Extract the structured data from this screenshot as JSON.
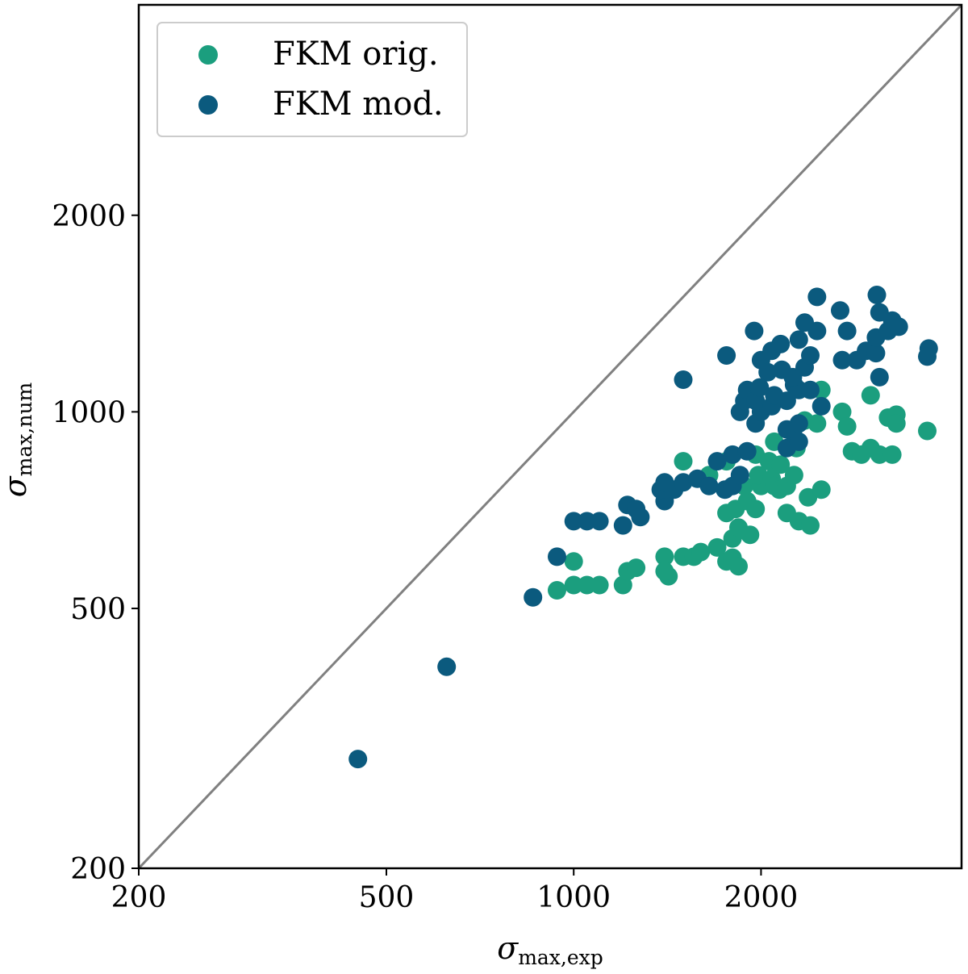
{
  "chart_data": {
    "type": "scatter",
    "title": "",
    "xlabel": {
      "symbol": "σ",
      "subscript": "max,exp"
    },
    "ylabel": {
      "symbol": "σ",
      "subscript": "max,num"
    },
    "xscale": "log",
    "yscale": "log",
    "xlim": [
      200,
      4200
    ],
    "ylim": [
      200,
      4200
    ],
    "xticks": [
      200,
      500,
      1000,
      2000
    ],
    "yticks": [
      200,
      500,
      1000,
      2000
    ],
    "xtick_labels": [
      "200",
      "500",
      "1000",
      "2000"
    ],
    "ytick_labels": [
      "200",
      "500",
      "1000",
      "2000"
    ],
    "grid": false,
    "legend_position": "top-left",
    "reference_line": {
      "description": "y = x",
      "color": "#808080"
    },
    "series": [
      {
        "name": "FKM orig.",
        "color": "#1b9e7e",
        "points": [
          [
            940,
            533
          ],
          [
            1000,
            590
          ],
          [
            1000,
            543
          ],
          [
            1050,
            543
          ],
          [
            1100,
            543
          ],
          [
            1200,
            543
          ],
          [
            1220,
            570
          ],
          [
            1260,
            577
          ],
          [
            1400,
            600
          ],
          [
            1420,
            560
          ],
          [
            1400,
            570
          ],
          [
            1500,
            600
          ],
          [
            1560,
            600
          ],
          [
            1600,
            610
          ],
          [
            1700,
            620
          ],
          [
            1760,
            590
          ],
          [
            1800,
            598
          ],
          [
            1840,
            580
          ],
          [
            1800,
            640
          ],
          [
            1840,
            665
          ],
          [
            1920,
            648
          ],
          [
            1760,
            700
          ],
          [
            1820,
            710
          ],
          [
            1900,
            730
          ],
          [
            1960,
            710
          ],
          [
            1880,
            770
          ],
          [
            2000,
            770
          ],
          [
            1980,
            800
          ],
          [
            2080,
            790
          ],
          [
            2100,
            770
          ],
          [
            2140,
            760
          ],
          [
            2200,
            770
          ],
          [
            2260,
            800
          ],
          [
            2200,
            700
          ],
          [
            2300,
            680
          ],
          [
            2400,
            670
          ],
          [
            2380,
            740
          ],
          [
            2500,
            760
          ],
          [
            1500,
            840
          ],
          [
            1650,
            800
          ],
          [
            1760,
            840
          ],
          [
            1960,
            860
          ],
          [
            2100,
            900
          ],
          [
            2060,
            840
          ],
          [
            2150,
            830
          ],
          [
            2280,
            880
          ],
          [
            2350,
            970
          ],
          [
            2460,
            960
          ],
          [
            2500,
            1080
          ],
          [
            2700,
            1000
          ],
          [
            2750,
            950
          ],
          [
            2800,
            870
          ],
          [
            2900,
            860
          ],
          [
            3000,
            880
          ],
          [
            3100,
            860
          ],
          [
            3250,
            860
          ],
          [
            3000,
            1060
          ],
          [
            3200,
            980
          ],
          [
            3300,
            990
          ],
          [
            3300,
            960
          ],
          [
            3700,
            935
          ]
        ]
      },
      {
        "name": "FKM mod.",
        "color": "#0b5a7e",
        "points": [
          [
            450,
            294
          ],
          [
            625,
            407
          ],
          [
            860,
            520
          ],
          [
            940,
            600
          ],
          [
            1000,
            680
          ],
          [
            1050,
            680
          ],
          [
            1100,
            680
          ],
          [
            1200,
            670
          ],
          [
            1220,
            720
          ],
          [
            1260,
            710
          ],
          [
            1280,
            690
          ],
          [
            1400,
            730
          ],
          [
            1380,
            760
          ],
          [
            1400,
            780
          ],
          [
            1450,
            760
          ],
          [
            1500,
            780
          ],
          [
            1580,
            790
          ],
          [
            1650,
            770
          ],
          [
            1750,
            760
          ],
          [
            1800,
            770
          ],
          [
            1850,
            800
          ],
          [
            1700,
            840
          ],
          [
            1800,
            860
          ],
          [
            1900,
            870
          ],
          [
            1960,
            960
          ],
          [
            1850,
            1000
          ],
          [
            1880,
            1040
          ],
          [
            1900,
            1080
          ],
          [
            1960,
            1040
          ],
          [
            2000,
            1000
          ],
          [
            2080,
            1020
          ],
          [
            2100,
            1060
          ],
          [
            2200,
            1040
          ],
          [
            2260,
            1100
          ],
          [
            2300,
            1080
          ],
          [
            2160,
            1160
          ],
          [
            2250,
            1130
          ],
          [
            2350,
            1170
          ],
          [
            2400,
            1220
          ],
          [
            2460,
            1330
          ],
          [
            2300,
            1290
          ],
          [
            2350,
            1370
          ],
          [
            2460,
            1500
          ],
          [
            2680,
            1430
          ],
          [
            2750,
            1330
          ],
          [
            2700,
            1200
          ],
          [
            2850,
            1200
          ],
          [
            2950,
            1240
          ],
          [
            3060,
            1230
          ],
          [
            3060,
            1300
          ],
          [
            3200,
            1330
          ],
          [
            3250,
            1380
          ],
          [
            3330,
            1350
          ],
          [
            3070,
            1510
          ],
          [
            3100,
            1420
          ],
          [
            3720,
            1250
          ],
          [
            3700,
            1215
          ],
          [
            2000,
            1200
          ],
          [
            2050,
            1150
          ],
          [
            2080,
            1240
          ],
          [
            1950,
            1330
          ],
          [
            1760,
            1220
          ],
          [
            1500,
            1120
          ],
          [
            2200,
            880
          ],
          [
            2250,
            930
          ],
          [
            2300,
            900
          ],
          [
            2200,
            940
          ],
          [
            2300,
            960
          ],
          [
            2500,
            1020
          ],
          [
            3100,
            1130
          ],
          [
            2150,
            1270
          ],
          [
            1990,
            1090
          ],
          [
            2400,
            1080
          ]
        ]
      }
    ]
  }
}
